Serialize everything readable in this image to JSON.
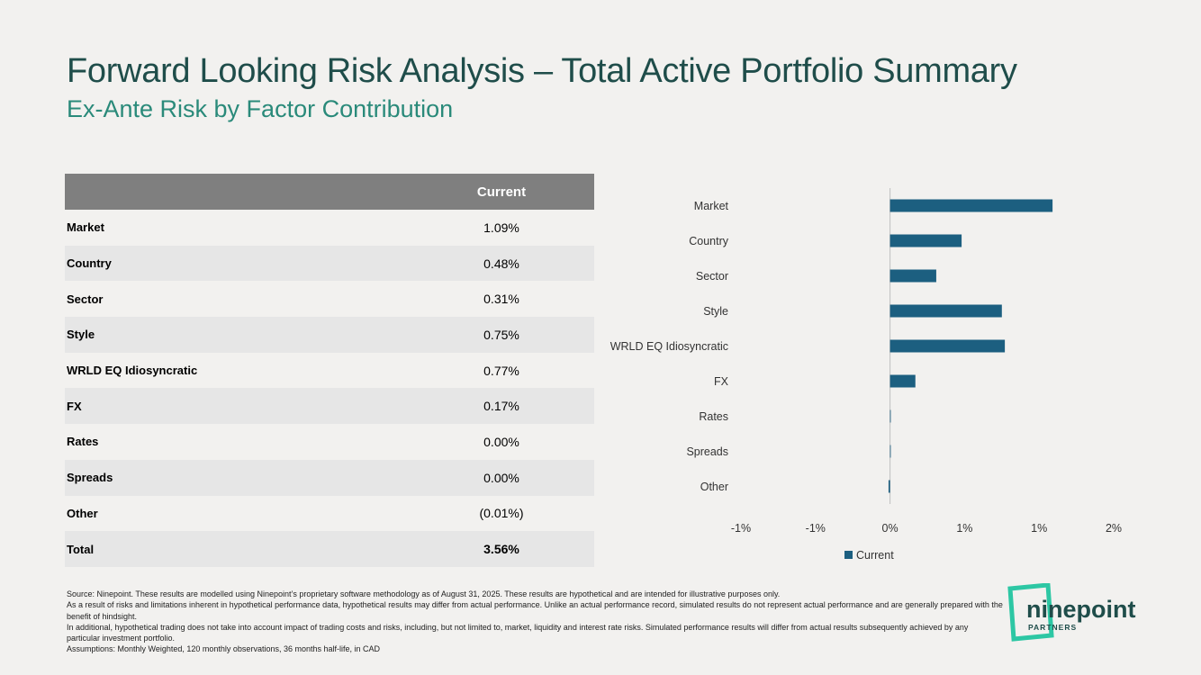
{
  "title": "Forward Looking Risk Analysis – Total Active Portfolio Summary",
  "subtitle": "Ex-Ante Risk by Factor Contribution",
  "table": {
    "header": [
      "",
      "Current"
    ],
    "rows": [
      {
        "label": "Market",
        "value": "1.09%"
      },
      {
        "label": "Country",
        "value": "0.48%"
      },
      {
        "label": "Sector",
        "value": "0.31%"
      },
      {
        "label": "Style",
        "value": "0.75%"
      },
      {
        "label": "WRLD EQ Idiosyncratic",
        "value": "0.77%"
      },
      {
        "label": "FX",
        "value": "0.17%"
      },
      {
        "label": "Rates",
        "value": "0.00%"
      },
      {
        "label": "Spreads",
        "value": "0.00%"
      },
      {
        "label": "Other",
        "value": "(0.01%)"
      },
      {
        "label": "Total",
        "value": "3.56%"
      }
    ]
  },
  "chart_data": {
    "type": "bar",
    "orientation": "horizontal",
    "categories": [
      "Market",
      "Country",
      "Sector",
      "Style",
      "WRLD EQ Idiosyncratic",
      "FX",
      "Rates",
      "Spreads",
      "Other"
    ],
    "series": [
      {
        "name": "Current",
        "values": [
          1.09,
          0.48,
          0.31,
          0.75,
          0.77,
          0.17,
          0.0,
          0.0,
          -0.01
        ]
      }
    ],
    "xlim": [
      -1.0,
      1.5
    ],
    "xticks": [
      -1.0,
      -0.5,
      0.0,
      0.5,
      1.0,
      1.5
    ],
    "xtick_labels": [
      "-1%",
      "-1%",
      "0%",
      "1%",
      "1%",
      "2%"
    ],
    "grid": false,
    "legend": "bottom",
    "bar_color": "#1c5f80",
    "axis_color": "#bfbfbf"
  },
  "footnotes": [
    "Source: Ninepoint. These results are modelled using Ninepoint’s proprietary software methodology as of August 31, 2025. These results are hypothetical and are intended for illustrative purposes only.",
    "As a result of risks and limitations inherent in hypothetical performance data, hypothetical results may differ from actual performance. Unlike an actual performance record, simulated results do not represent actual performance and are generally prepared with the benefit of hindsight.",
    "In additional, hypothetical trading does not take into account impact of trading costs and risks, including, but not limited to, market, liquidity and interest rate risks.  Simulated performance results will differ from actual results subsequently achieved by any particular investment portfolio.",
    "Assumptions: Monthly Weighted, 120 monthly observations,  36 months half-life, in CAD"
  ],
  "logo": {
    "word": "ninepoint",
    "sub": "PARTNERS",
    "frame_color": "#2dc7a4",
    "text_color": "#1f4d4a"
  }
}
